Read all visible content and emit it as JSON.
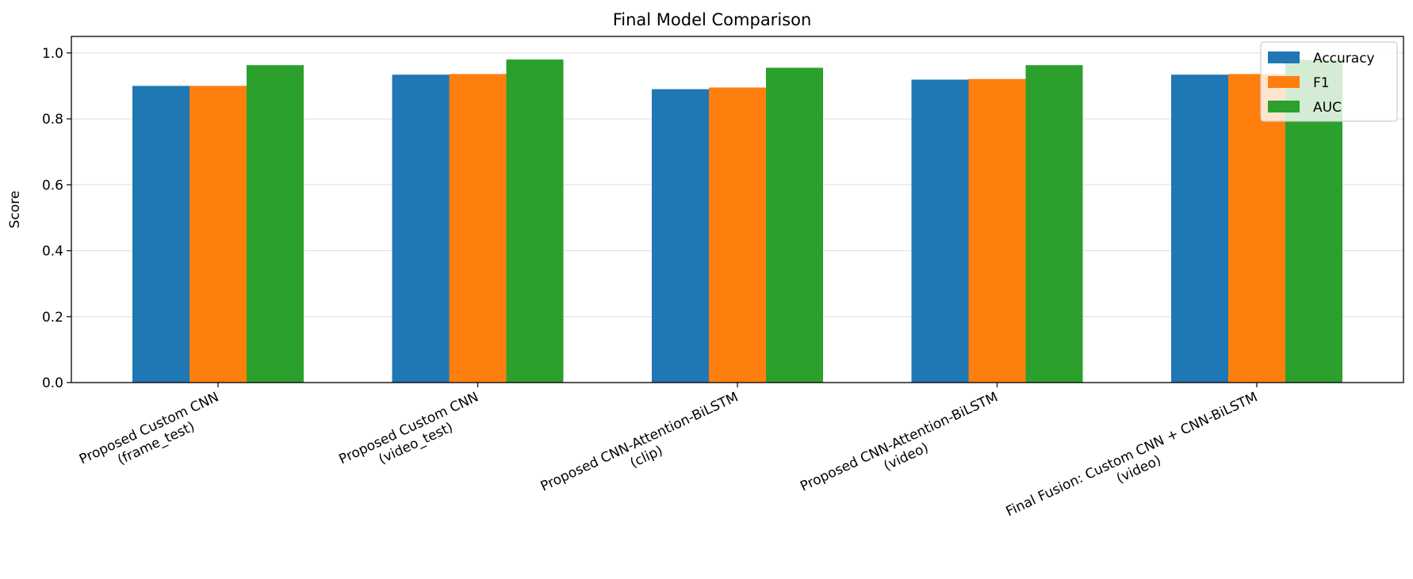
{
  "chart_data": {
    "type": "bar",
    "title": "Final Model Comparison",
    "xlabel": "",
    "ylabel": "Score",
    "ylim": [
      0,
      1.05
    ],
    "yticks": [
      0.0,
      0.2,
      0.4,
      0.6,
      0.8,
      1.0
    ],
    "ytick_labels": [
      "0.0",
      "0.2",
      "0.4",
      "0.6",
      "0.8",
      "1.0"
    ],
    "grid": "y",
    "legend_position": "top-right",
    "categories": [
      [
        "Proposed Custom CNN",
        "(frame_test)"
      ],
      [
        "Proposed Custom CNN",
        "(video_test)"
      ],
      [
        "Proposed CNN-Attention-BiLSTM",
        "(clip)"
      ],
      [
        "Proposed CNN-Attention-BiLSTM",
        "(video)"
      ],
      [
        "Final Fusion: Custom CNN + CNN-BiLSTM",
        "(video)"
      ]
    ],
    "series": [
      {
        "name": "Accuracy",
        "color": "#1f77b4",
        "values": [
          0.9,
          0.934,
          0.89,
          0.919,
          0.934
        ]
      },
      {
        "name": "F1",
        "color": "#ff7f0e",
        "values": [
          0.9,
          0.936,
          0.895,
          0.921,
          0.936
        ]
      },
      {
        "name": "AUC",
        "color": "#2ca02c",
        "values": [
          0.963,
          0.98,
          0.955,
          0.963,
          0.979
        ]
      }
    ]
  }
}
